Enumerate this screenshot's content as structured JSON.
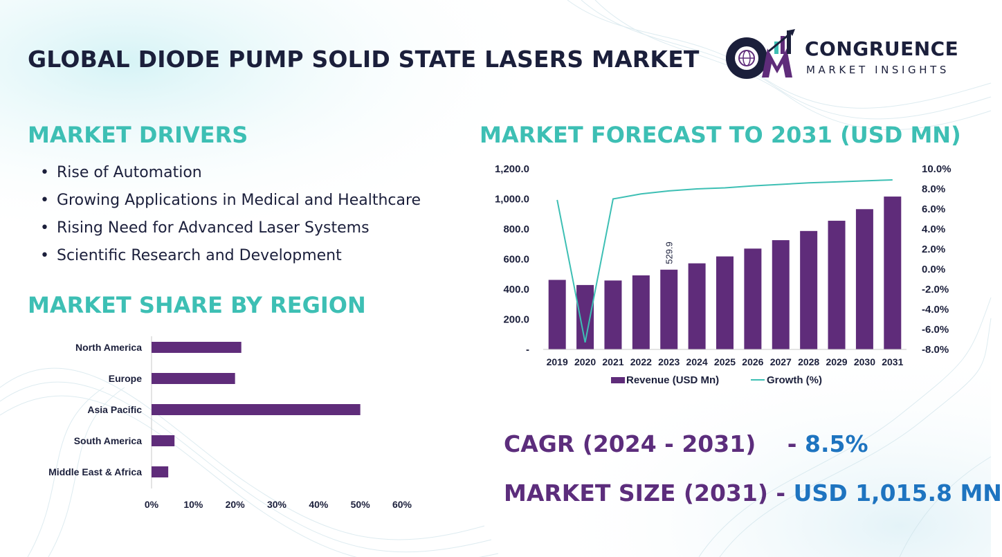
{
  "header": {
    "title": "GLOBAL DIODE PUMP SOLID STATE LASERS MARKET",
    "logo_name": "CONGRUENCE",
    "logo_subtitle": "MARKET INSIGHTS"
  },
  "drivers": {
    "title": "MARKET DRIVERS",
    "bullet": "•",
    "items": [
      "Rise of Automation",
      "Growing Applications in Medical and Healthcare",
      "Rising Need for Advanced Laser Systems",
      "Scientific Research and Development"
    ]
  },
  "region_section": {
    "title": "MARKET SHARE BY REGION"
  },
  "forecast_section": {
    "title": "MARKET FORECAST TO 2031 (USD MN)"
  },
  "summary": {
    "cagr_label": "CAGR (2024 - 2031)",
    "cagr_sep": "-",
    "cagr_value": "8.5%",
    "size_label": "MARKET SIZE (2031)",
    "size_sep": "-",
    "size_value": "USD  1,015.8 MN"
  },
  "colors": {
    "bar": "#5f2c7a",
    "line": "#3dbfb4",
    "teal_title": "#3dbfb4",
    "navy": "#1b1f3b",
    "blue": "#1e74c0"
  },
  "chart_data": [
    {
      "type": "bar",
      "orientation": "horizontal",
      "categories": [
        "North America",
        "Europe",
        "Asia Pacific",
        "South America",
        "Middle East & Africa"
      ],
      "values": [
        21.5,
        20,
        50,
        5.5,
        4
      ],
      "xlim": [
        0,
        60
      ],
      "xticks": [
        "0%",
        "10%",
        "20%",
        "30%",
        "40%",
        "50%",
        "60%"
      ],
      "xtick_values": [
        0,
        10,
        20,
        30,
        40,
        50,
        60
      ],
      "grid": false
    },
    {
      "type": "bar",
      "categories": [
        "2019",
        "2020",
        "2021",
        "2022",
        "2023",
        "2024",
        "2025",
        "2026",
        "2027",
        "2028",
        "2029",
        "2030",
        "2031"
      ],
      "series": [
        {
          "name": "Revenue (USD Mn)",
          "axis": "left",
          "values": [
            462,
            428,
            458,
            492,
            529.9,
            572,
            618,
            670,
            726,
            787,
            855,
            932,
            1015.8
          ]
        },
        {
          "name": "Growth (%)",
          "axis": "right",
          "type": "line",
          "values": [
            6.9,
            -7.3,
            7.0,
            7.5,
            7.8,
            8.0,
            8.1,
            8.3,
            8.45,
            8.6,
            8.7,
            8.8,
            8.9
          ]
        }
      ],
      "data_labels": [
        {
          "category": "2023",
          "text": "529.9"
        }
      ],
      "ylim_left": [
        0,
        1200
      ],
      "yticks_left": [
        "-",
        "200.0",
        "400.0",
        "600.0",
        "800.0",
        "1,000.0",
        "1,200.0"
      ],
      "ytick_values_left": [
        0,
        200,
        400,
        600,
        800,
        1000,
        1200
      ],
      "ylim_right": [
        -8,
        10
      ],
      "yticks_right": [
        "-8.0%",
        "-6.0%",
        "-4.0%",
        "-2.0%",
        "0.0%",
        "2.0%",
        "4.0%",
        "6.0%",
        "8.0%",
        "10.0%"
      ],
      "ytick_values_right": [
        -8,
        -6,
        -4,
        -2,
        0,
        2,
        4,
        6,
        8,
        10
      ],
      "legend": "bottom",
      "grid": false
    }
  ]
}
